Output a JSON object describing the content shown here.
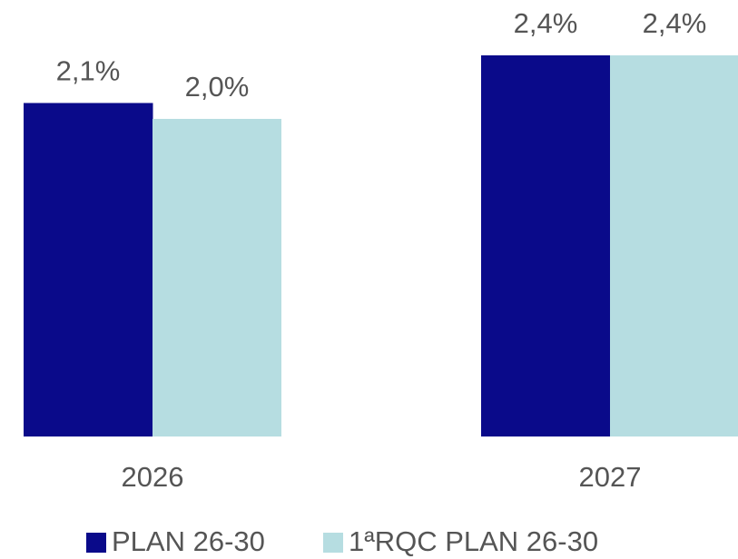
{
  "chart_data": {
    "type": "bar",
    "categories": [
      "2026",
      "2027"
    ],
    "series": [
      {
        "name": "PLAN 26-30",
        "color": "#0a0a8a",
        "values": [
          2.1,
          2.4
        ],
        "value_labels": [
          "2,1%",
          "2,4%"
        ]
      },
      {
        "name": "1ªRQC PLAN 26-30",
        "color": "#b6dde1",
        "values": [
          2.0,
          2.4
        ],
        "value_labels": [
          "2,0%",
          "2,4%"
        ]
      }
    ]
  }
}
